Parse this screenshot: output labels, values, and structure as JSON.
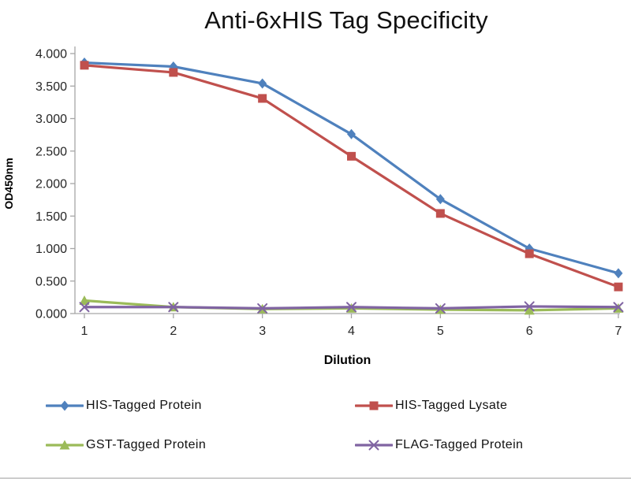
{
  "title": "Anti-6xHIS Tag Specificity",
  "axis_color": "#a6a6a6",
  "text_color": "#262626",
  "chart_data": {
    "type": "line",
    "title": "Anti-6xHIS Tag Specificity",
    "xlabel": "Dilution",
    "ylabel": "OD450nm",
    "x": [
      1,
      2,
      3,
      4,
      5,
      6,
      7
    ],
    "ylim": [
      0,
      4
    ],
    "ytick_step": 0.5,
    "ytick_labels": [
      "0.000",
      "0.500",
      "1.000",
      "1.500",
      "2.000",
      "2.500",
      "3.000",
      "3.500",
      "4.000"
    ],
    "grid": false,
    "legend_position": "bottom",
    "series": [
      {
        "name": "HIS-Tagged Protein",
        "color": "#4F81BD",
        "marker": "diamond",
        "values": [
          3.86,
          3.8,
          3.54,
          2.76,
          1.76,
          1.0,
          0.62
        ]
      },
      {
        "name": "HIS-Tagged Lysate",
        "color": "#C0504D",
        "marker": "square",
        "values": [
          3.82,
          3.71,
          3.31,
          2.42,
          1.54,
          0.92,
          0.41
        ]
      },
      {
        "name": "GST-Tagged Protein",
        "color": "#9BBB59",
        "marker": "triangle",
        "values": [
          0.2,
          0.1,
          0.07,
          0.08,
          0.06,
          0.05,
          0.08
        ]
      },
      {
        "name": "FLAG-Tagged Protein",
        "color": "#8064A2",
        "marker": "x",
        "values": [
          0.1,
          0.1,
          0.08,
          0.1,
          0.08,
          0.11,
          0.1
        ]
      }
    ]
  }
}
